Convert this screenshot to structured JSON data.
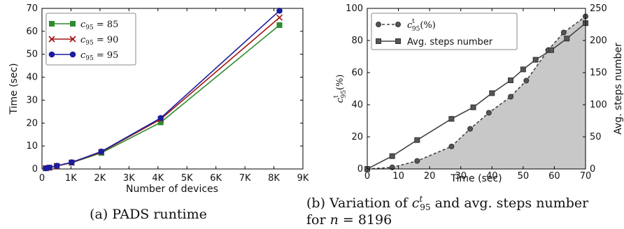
{
  "chart_data": [
    {
      "type": "line",
      "xlabel": "Number of devices",
      "ylabel": "Time (sec)",
      "xlim": [
        0,
        9
      ],
      "ylim": [
        0,
        70
      ],
      "xticks": [
        "0",
        "1K",
        "2K",
        "3K",
        "4K",
        "5K",
        "6K",
        "7K",
        "8K",
        "9K"
      ],
      "yticks": [
        "0",
        "10",
        "20",
        "30",
        "40",
        "50",
        "60",
        "70"
      ],
      "legend_position": "top-left",
      "x": [
        0.128,
        0.256,
        0.512,
        1.024,
        2.048,
        4.096,
        8.192
      ],
      "series": [
        {
          "name": "c95 = 85",
          "legend_sym": "c",
          "legend_sub": "95",
          "legend_rest": " = 85",
          "color": "#2e8b2e",
          "marker": "square",
          "values": [
            0.3,
            0.6,
            1.3,
            2.7,
            7.0,
            20.3,
            62.7
          ]
        },
        {
          "name": "c95 = 90",
          "legend_sym": "c",
          "legend_sub": "95",
          "legend_rest": " = 90",
          "color": "#a31515",
          "marker": "x",
          "values": [
            0.3,
            0.6,
            1.3,
            2.8,
            7.4,
            21.7,
            66.0
          ]
        },
        {
          "name": "c95 = 95",
          "legend_sym": "c",
          "legend_sub": "95",
          "legend_rest": " = 95",
          "color": "#1c1c9e",
          "marker": "circle",
          "values": [
            0.3,
            0.6,
            1.4,
            2.9,
            7.6,
            22.2,
            69.0
          ]
        }
      ],
      "caption": "(a) PADS runtime",
      "grid": false
    },
    {
      "type": "line",
      "xlabel": "Time (sec)",
      "ylabel_left": "c95t(%)",
      "ylabel_left_sym": "c",
      "ylabel_left_sup": "t",
      "ylabel_left_sub": "95",
      "ylabel_left_rest": "(%)",
      "ylabel_right": "Avg. steps number",
      "xlim": [
        0,
        70
      ],
      "ylim_left": [
        0,
        100
      ],
      "ylim_right": [
        0,
        250
      ],
      "xticks": [
        "0",
        "10",
        "20",
        "30",
        "40",
        "50",
        "60",
        "70"
      ],
      "yticks_left": [
        "0",
        "20",
        "40",
        "60",
        "80",
        "100"
      ],
      "yticks_right": [
        "0",
        "50",
        "100",
        "150",
        "200",
        "250"
      ],
      "legend_position": "top-left",
      "grid": false,
      "series": [
        {
          "name": "c95t(%)",
          "legend_sym": "c",
          "legend_sup": "t",
          "legend_sub": "95",
          "legend_rest": "(%)",
          "axis": "left",
          "style": "dashed",
          "marker": "circle",
          "fill": "#c8c8c8",
          "color": "#444444",
          "x": [
            0,
            8,
            16,
            27,
            33,
            39,
            46,
            51,
            58,
            63,
            70
          ],
          "y": [
            0,
            1,
            5,
            14,
            25,
            35,
            45,
            55,
            74,
            85,
            95
          ]
        },
        {
          "name": "Avg. steps number",
          "legend_rest": "Avg. steps number",
          "axis": "right",
          "style": "solid",
          "marker": "square",
          "color": "#444444",
          "x": [
            0,
            8,
            16,
            27,
            34,
            40,
            46,
            50,
            54,
            59,
            64,
            70
          ],
          "y": [
            0,
            20,
            45,
            78,
            96,
            118,
            138,
            155,
            170,
            185,
            203,
            227
          ]
        }
      ],
      "caption_line1": "(b) Variation of c95t and avg. steps number",
      "caption_prefix": "(b) Variation of ",
      "caption_sym": "c",
      "caption_sup": "t",
      "caption_sub": "95",
      "caption_suffix": " and avg. steps number",
      "caption_line2_prefix": "for ",
      "caption_line2_sym": "n",
      "caption_line2_rest": " = 8196"
    }
  ]
}
